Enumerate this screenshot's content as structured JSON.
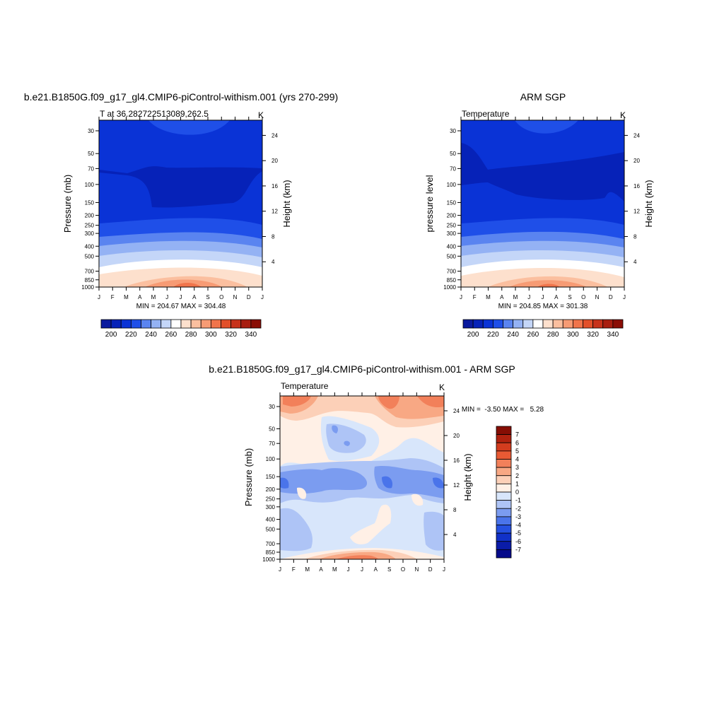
{
  "colors": {
    "temp_palette": [
      "#0a1a9e",
      "#0622b8",
      "#0a33d6",
      "#1f4fe8",
      "#5a84f0",
      "#94b2f4",
      "#c4d6f8",
      "#ffffff",
      "#fde0cd",
      "#fbbf9f",
      "#f79b74",
      "#f0744b",
      "#e2502a",
      "#c7321b",
      "#a81e10",
      "#8a0d05"
    ],
    "diff_palette": [
      "#050a8a",
      "#0a1ca8",
      "#1131c8",
      "#2550e0",
      "#4a74ea",
      "#7b9cf0",
      "#aec4f6",
      "#d8e6fb",
      "#fff0e6",
      "#fcd0b8",
      "#f8a884",
      "#f2805a",
      "#e85a34",
      "#d33c1e",
      "#b0220f",
      "#860e04"
    ]
  },
  "chart_data": [
    {
      "id": "model",
      "type": "heatmap",
      "title": "b.e21.B1850G.f09_g17_gl4.CMIP6-piControl-withism.001 (yrs 270-299)",
      "subtitle_left": "T at 36.282722513089,262.5",
      "subtitle_right": "K",
      "ylabel": "Pressure (mb)",
      "ylabel_right": "Height (km)",
      "x_ticks": [
        "J",
        "F",
        "M",
        "A",
        "M",
        "J",
        "J",
        "A",
        "S",
        "O",
        "N",
        "D",
        "J"
      ],
      "y_ticks": [
        "30",
        "50",
        "70",
        "100",
        "150",
        "200",
        "250",
        "300",
        "400",
        "500",
        "700",
        "850",
        "1000"
      ],
      "y_ticks_right": [
        "24",
        "20",
        "16",
        "12",
        "8",
        "4"
      ],
      "minmax": "MIN = 204.67 MAX = 304.48",
      "colorbar_labels": [
        "200",
        "220",
        "240",
        "260",
        "280",
        "300",
        "320",
        "340"
      ],
      "min": 204.67,
      "max": 304.48
    },
    {
      "id": "obs",
      "type": "heatmap",
      "title": "ARM SGP",
      "subtitle_left": "Temperature",
      "subtitle_right": "K",
      "ylabel": "pressure level",
      "ylabel_right": "Height (km)",
      "x_ticks": [
        "J",
        "F",
        "M",
        "A",
        "M",
        "J",
        "J",
        "A",
        "S",
        "O",
        "N",
        "D",
        "J"
      ],
      "y_ticks": [
        "30",
        "50",
        "70",
        "100",
        "150",
        "200",
        "250",
        "300",
        "400",
        "500",
        "700",
        "850",
        "1000"
      ],
      "y_ticks_right": [
        "24",
        "20",
        "16",
        "12",
        "8",
        "4"
      ],
      "minmax": "MIN = 204.85 MAX = 301.38",
      "colorbar_labels": [
        "200",
        "220",
        "240",
        "260",
        "280",
        "300",
        "320",
        "340"
      ],
      "min": 204.85,
      "max": 301.38
    },
    {
      "id": "diff",
      "type": "heatmap",
      "title": "b.e21.B1850G.f09_g17_gl4.CMIP6-piControl-withism.001 - ARM SGP",
      "subtitle_left": "Temperature",
      "subtitle_right": "K",
      "ylabel": "Pressure (mb)",
      "ylabel_right": "Height (km)",
      "x_ticks": [
        "J",
        "F",
        "M",
        "A",
        "M",
        "J",
        "J",
        "A",
        "S",
        "O",
        "N",
        "D",
        "J"
      ],
      "y_ticks": [
        "30",
        "50",
        "70",
        "100",
        "150",
        "200",
        "250",
        "300",
        "400",
        "500",
        "700",
        "850",
        "1000"
      ],
      "y_ticks_right": [
        "24",
        "20",
        "16",
        "12",
        "8",
        "4"
      ],
      "minmax": "MIN =  -3.50 MAX =   5.28",
      "colorbar_labels": [
        "7",
        "6",
        "5",
        "4",
        "3",
        "2",
        "1",
        "0",
        "-1",
        "-2",
        "-3",
        "-4",
        "-5",
        "-6",
        "-7"
      ],
      "min": -3.5,
      "max": 5.28
    }
  ]
}
